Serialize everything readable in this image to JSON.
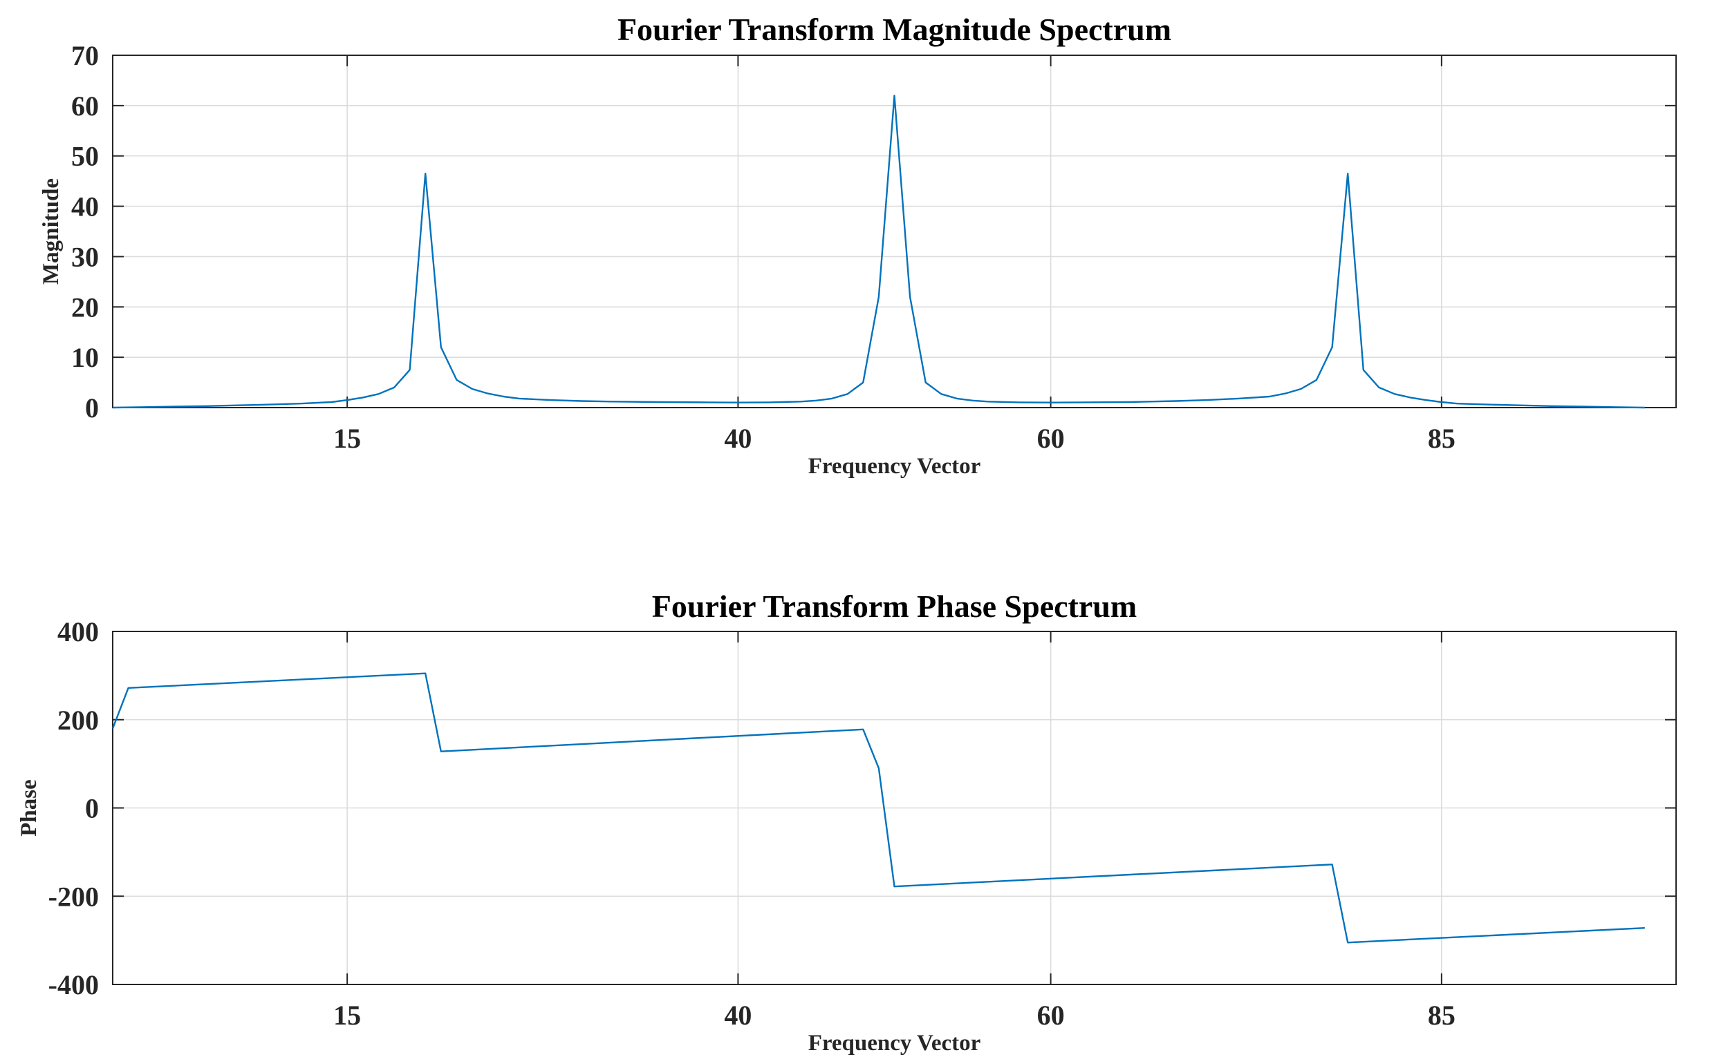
{
  "colors": {
    "series": "#0072BD"
  },
  "chart_data": [
    {
      "type": "line",
      "title": "Fourier Transform Magnitude Spectrum",
      "xlabel": "Frequency Vector",
      "ylabel": "Magnitude",
      "xlim": [
        0,
        100
      ],
      "ylim": [
        0,
        70
      ],
      "xticks": [
        15,
        40,
        60,
        85
      ],
      "xtick_labels": [
        "15",
        "40",
        "60",
        "85"
      ],
      "yticks": [
        0,
        10,
        20,
        30,
        40,
        50,
        60,
        70
      ],
      "ytick_labels": [
        "0",
        "10",
        "20",
        "30",
        "40",
        "50",
        "60",
        "70"
      ],
      "grid": true,
      "series": [
        {
          "x": [
            0,
            2,
            4,
            6,
            8,
            10,
            12,
            14,
            15,
            16,
            17,
            18,
            19,
            20,
            21,
            22,
            23,
            24,
            25,
            26,
            28,
            30,
            32,
            35,
            38,
            40,
            42,
            44,
            45,
            46,
            47,
            48,
            49,
            50,
            51,
            52,
            53,
            54,
            55,
            56,
            58,
            60,
            62,
            65,
            68,
            70,
            72,
            74,
            75,
            76,
            77,
            78,
            79,
            80,
            81,
            82,
            83,
            84,
            85,
            86,
            88,
            90,
            92,
            94,
            96,
            98
          ],
          "y": [
            0.0,
            0.1,
            0.2,
            0.3,
            0.45,
            0.6,
            0.8,
            1.1,
            1.5,
            2.0,
            2.7,
            4.0,
            7.5,
            46.5,
            12.0,
            5.5,
            3.7,
            2.8,
            2.2,
            1.8,
            1.5,
            1.3,
            1.2,
            1.1,
            1.05,
            1.0,
            1.05,
            1.2,
            1.4,
            1.8,
            2.7,
            5.0,
            22.0,
            62.0,
            22.0,
            5.0,
            2.7,
            1.8,
            1.4,
            1.2,
            1.05,
            1.0,
            1.05,
            1.1,
            1.3,
            1.5,
            1.8,
            2.2,
            2.8,
            3.7,
            5.5,
            12.0,
            46.5,
            7.5,
            4.0,
            2.7,
            2.0,
            1.5,
            1.1,
            0.8,
            0.6,
            0.45,
            0.3,
            0.2,
            0.1,
            0.0
          ]
        }
      ]
    },
    {
      "type": "line",
      "title": "Fourier Transform Phase Spectrum",
      "xlabel": "Frequency Vector",
      "ylabel": "Phase",
      "xlim": [
        0,
        100
      ],
      "ylim": [
        -400,
        400
      ],
      "xticks": [
        15,
        40,
        60,
        85
      ],
      "xtick_labels": [
        "15",
        "40",
        "60",
        "85"
      ],
      "yticks": [
        -400,
        -200,
        0,
        200,
        400
      ],
      "ytick_labels": [
        "-400",
        "-200",
        "0",
        "200",
        "400"
      ],
      "grid": true,
      "series": [
        {
          "x": [
            0,
            1,
            20,
            21,
            48,
            49,
            50,
            78,
            79,
            98
          ],
          "y": [
            180,
            272,
            305,
            128,
            178,
            90,
            -178,
            -128,
            -305,
            -272
          ]
        }
      ]
    }
  ]
}
